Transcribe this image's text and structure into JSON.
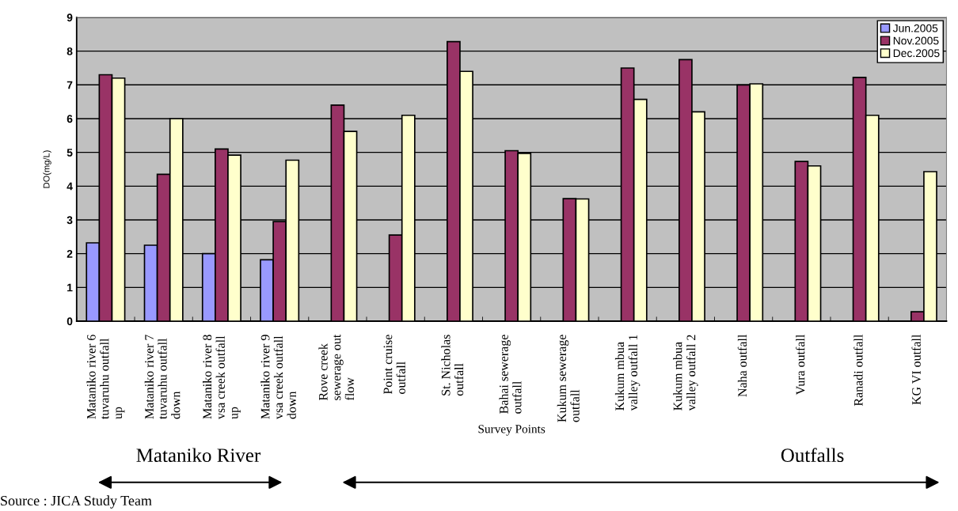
{
  "chart_data": {
    "type": "bar",
    "ylabel": "DO(mg/L)",
    "xlabel": "Survey Points",
    "categories": [
      "Mataniko river 6\ntuvaruhu outfall\nup",
      "Mataniko river 7\ntuvaruhu outfall\ndown",
      "Mataniko river 8\nvsa creek outfall\nup",
      "Mataniko river 9\nvsa creek outfall\ndown",
      "Rove creek\nsewerage out\nflow",
      "Point cruise\noutfall",
      "St. Nicholas\noutfall",
      "Bahai sewerage\noutfall",
      "Kukum sewerage\noutfall",
      "Kukum mbua\nvalley outfall 1",
      "Kukum mbua\nvalley outfall 2",
      "Naha outfall",
      "Vura outfall",
      "Ranadi outfall",
      "KG VI outfall"
    ],
    "series": [
      {
        "name": "Jun.2005",
        "color": "#9999ff",
        "values": [
          2.32,
          2.25,
          2.0,
          1.82,
          null,
          null,
          null,
          null,
          null,
          null,
          null,
          null,
          null,
          null,
          null
        ]
      },
      {
        "name": "Nov.2005",
        "color": "#993366",
        "values": [
          7.3,
          4.35,
          5.1,
          2.95,
          6.4,
          2.55,
          8.28,
          5.05,
          3.63,
          7.5,
          7.75,
          7.0,
          4.73,
          7.22,
          0.28
        ]
      },
      {
        "name": "Dec.2005",
        "color": "#ffffcc",
        "values": [
          7.2,
          6.0,
          4.92,
          4.77,
          5.62,
          6.1,
          7.4,
          4.97,
          3.62,
          6.57,
          6.2,
          7.03,
          4.6,
          6.1,
          4.43
        ]
      }
    ],
    "ylim": [
      0,
      9
    ],
    "yticks": [
      0,
      1,
      2,
      3,
      4,
      5,
      6,
      7,
      8,
      9
    ],
    "grid": "y",
    "legend": "top right",
    "annotations": [
      "Mataniko River",
      "Outfalls",
      "Source : JICA Study Team"
    ]
  }
}
